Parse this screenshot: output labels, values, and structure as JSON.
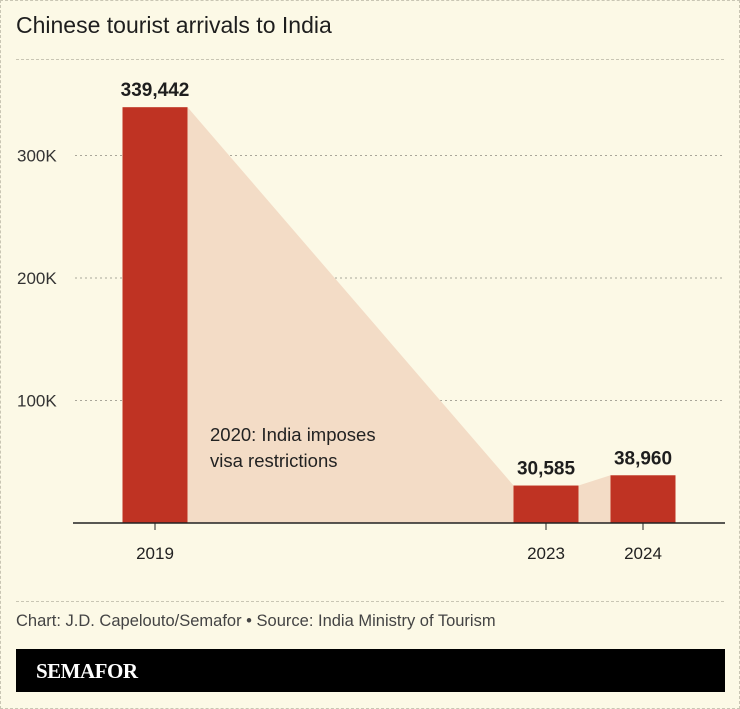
{
  "title": "Chinese tourist arrivals to India",
  "source": "Chart: J.D. Capelouto/Semafor • Source: India Ministry of Tourism",
  "logo": "SEMAFOR",
  "colors": {
    "bar": "#bf3323",
    "shade": "#f3dcc6",
    "background": "#fcf9e6"
  },
  "chart_data": {
    "type": "bar",
    "title": "Chinese tourist arrivals to India",
    "categories": [
      "2019",
      "2023",
      "2024"
    ],
    "values": [
      339442,
      30585,
      38960
    ],
    "data_labels": [
      "339,442",
      "30,585",
      "38,960"
    ],
    "yticks": [
      100000,
      200000,
      300000
    ],
    "ytick_labels": [
      "100K",
      "200K",
      "300K"
    ],
    "ylim": [
      0,
      340000
    ],
    "grid": true,
    "annotation": [
      "2020: India imposes",
      "visa restrictions"
    ]
  }
}
